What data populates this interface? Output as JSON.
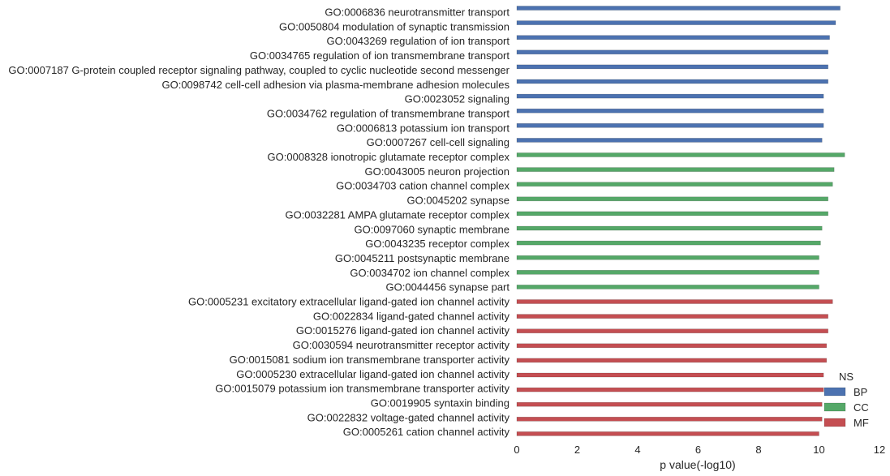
{
  "chart_data": {
    "type": "bar",
    "orientation": "horizontal",
    "xlabel": "p value(-log10)",
    "ylabel": "",
    "xlim": [
      0,
      12
    ],
    "xticks": [
      "0",
      "2",
      "4",
      "6",
      "8",
      "10",
      "12"
    ],
    "grid": false,
    "legend": {
      "title": "NS",
      "placement": "bottom-right",
      "entries": [
        {
          "name": "BP",
          "color": "#4c72b0"
        },
        {
          "name": "CC",
          "color": "#55a868"
        },
        {
          "name": "MF",
          "color": "#c44e52"
        }
      ]
    },
    "bars": [
      {
        "category": "GO:0006836 neurotransmitter transport",
        "value": 10.7,
        "group": "BP"
      },
      {
        "category": "GO:0050804 modulation of synaptic transmission",
        "value": 10.55,
        "group": "BP"
      },
      {
        "category": "GO:0043269 regulation of ion transport",
        "value": 10.35,
        "group": "BP"
      },
      {
        "category": "GO:0034765 regulation of ion transmembrane transport",
        "value": 10.3,
        "group": "BP"
      },
      {
        "category": "GO:0007187 G-protein coupled receptor signaling pathway, coupled to cyclic nucleotide second messenger",
        "value": 10.3,
        "group": "BP"
      },
      {
        "category": "GO:0098742 cell-cell adhesion via plasma-membrane adhesion molecules",
        "value": 10.3,
        "group": "BP"
      },
      {
        "category": "GO:0023052 signaling",
        "value": 10.15,
        "group": "BP"
      },
      {
        "category": "GO:0034762 regulation of transmembrane transport",
        "value": 10.15,
        "group": "BP"
      },
      {
        "category": "GO:0006813 potassium ion transport",
        "value": 10.15,
        "group": "BP"
      },
      {
        "category": "GO:0007267 cell-cell signaling",
        "value": 10.1,
        "group": "BP"
      },
      {
        "category": "GO:0008328 ionotropic glutamate receptor complex",
        "value": 10.85,
        "group": "CC"
      },
      {
        "category": "GO:0043005 neuron projection",
        "value": 10.5,
        "group": "CC"
      },
      {
        "category": "GO:0034703 cation channel complex",
        "value": 10.45,
        "group": "CC"
      },
      {
        "category": "GO:0045202 synapse",
        "value": 10.3,
        "group": "CC"
      },
      {
        "category": "GO:0032281 AMPA glutamate receptor complex",
        "value": 10.3,
        "group": "CC"
      },
      {
        "category": "GO:0097060 synaptic membrane",
        "value": 10.1,
        "group": "CC"
      },
      {
        "category": "GO:0043235 receptor complex",
        "value": 10.05,
        "group": "CC"
      },
      {
        "category": "GO:0045211 postsynaptic membrane",
        "value": 10.0,
        "group": "CC"
      },
      {
        "category": "GO:0034702 ion channel complex",
        "value": 10.0,
        "group": "CC"
      },
      {
        "category": "GO:0044456 synapse part",
        "value": 10.0,
        "group": "CC"
      },
      {
        "category": "GO:0005231 excitatory extracellular ligand-gated ion channel activity",
        "value": 10.45,
        "group": "MF"
      },
      {
        "category": "GO:0022834 ligand-gated channel activity",
        "value": 10.3,
        "group": "MF"
      },
      {
        "category": "GO:0015276 ligand-gated ion channel activity",
        "value": 10.3,
        "group": "MF"
      },
      {
        "category": "GO:0030594 neurotransmitter receptor activity",
        "value": 10.25,
        "group": "MF"
      },
      {
        "category": "GO:0015081 sodium ion transmembrane transporter activity",
        "value": 10.25,
        "group": "MF"
      },
      {
        "category": "GO:0005230 extracellular ligand-gated ion channel activity",
        "value": 10.15,
        "group": "MF"
      },
      {
        "category": "GO:0015079 potassium ion transmembrane transporter activity",
        "value": 10.15,
        "group": "MF"
      },
      {
        "category": "GO:0019905 syntaxin binding",
        "value": 10.1,
        "group": "MF"
      },
      {
        "category": "GO:0022832 voltage-gated channel activity",
        "value": 10.1,
        "group": "MF"
      },
      {
        "category": "GO:0005261 cation channel activity",
        "value": 10.0,
        "group": "MF"
      }
    ]
  }
}
